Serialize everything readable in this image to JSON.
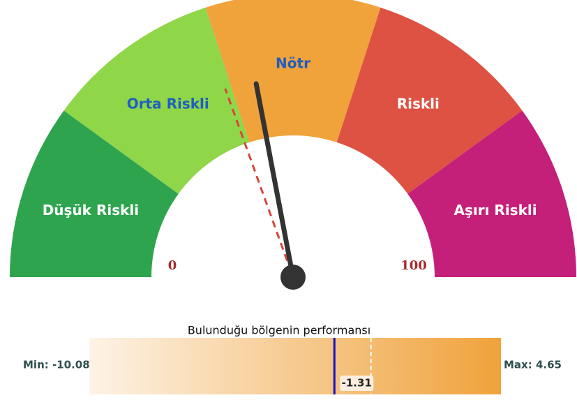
{
  "chart_data": {
    "type": "gauge",
    "range": [
      0,
      100
    ],
    "segments": [
      {
        "label": "Düşük Riskli",
        "from": 0,
        "to": 20,
        "color": "#2ea44f",
        "label_color": "#ffffff"
      },
      {
        "label": "Orta Riskli",
        "from": 20,
        "to": 40,
        "color": "#8fd649",
        "label_color": "#1f5fbf"
      },
      {
        "label": "Nötr",
        "from": 40,
        "to": 60,
        "color": "#f0a23b",
        "label_color": "#1f5fbf"
      },
      {
        "label": "Riskli",
        "from": 60,
        "to": 80,
        "color": "#dd5243",
        "label_color": "#ffffff"
      },
      {
        "label": "Aşırı Riskli",
        "from": 80,
        "to": 100,
        "color": "#c4207a",
        "label_color": "#ffffff"
      }
    ],
    "value": 44,
    "marker_value": 39,
    "performance": {
      "title": "Bulunduğu bölgenin performansı",
      "min": {
        "value": -10.08,
        "label": "Min: -10.08"
      },
      "max": {
        "value": 4.65,
        "label": "Max: 4.65"
      },
      "value": -1.31,
      "reference": 0
    }
  }
}
